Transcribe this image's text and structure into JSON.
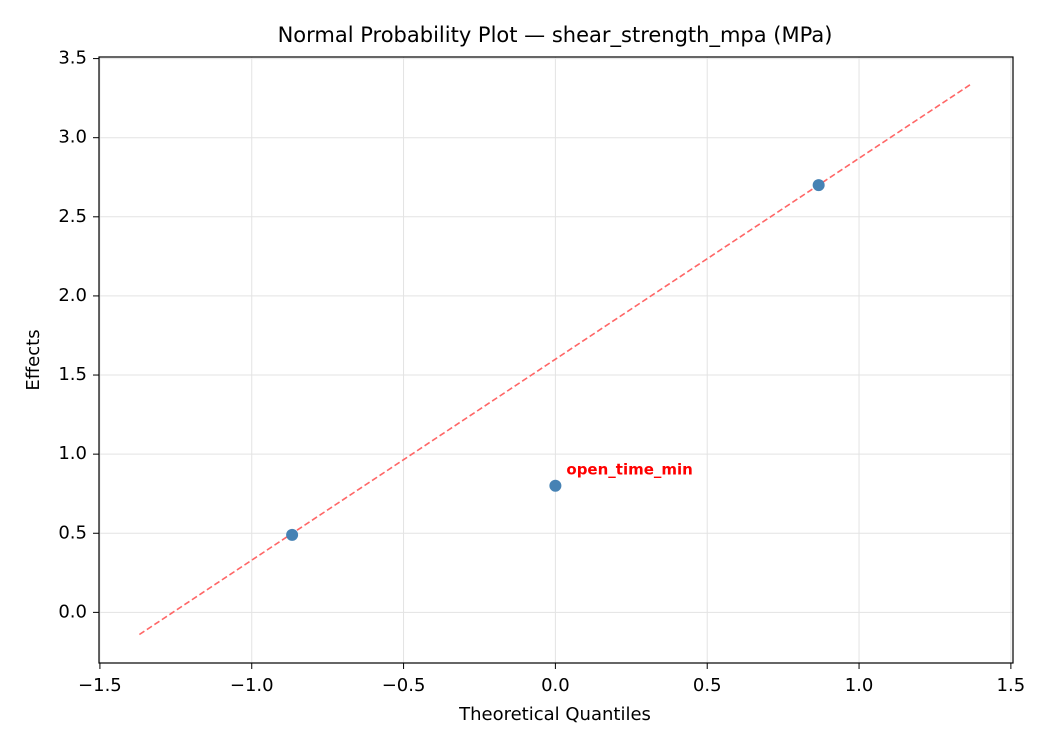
{
  "chart_data": {
    "type": "scatter",
    "title": "Normal Probability Plot — shear_strength_mpa (MPa)",
    "x_label": "Theoretical Quantiles",
    "y_label": "Effects",
    "xlim": [
      -1.503,
      1.507
    ],
    "ylim": [
      -0.32,
      3.51
    ],
    "xticks": [
      {
        "value": -1.5,
        "label": "−1.5"
      },
      {
        "value": -1,
        "label": "−1.0"
      },
      {
        "value": -0.5,
        "label": "−0.5"
      },
      {
        "value": 0,
        "label": "0.0"
      },
      {
        "value": 0.5,
        "label": "0.5"
      },
      {
        "value": 1,
        "label": "1.0"
      },
      {
        "value": 1.5,
        "label": "1.5"
      }
    ],
    "yticks": [
      {
        "value": 0,
        "label": "0.0"
      },
      0.5,
      {
        "value": 1,
        "label": "1.0"
      },
      1.5,
      {
        "value": 2,
        "label": "2.0"
      },
      2.5,
      {
        "value": 3,
        "label": "3.0"
      },
      3.5
    ],
    "grid": true,
    "points": {
      "color": "#4682b4",
      "x": [
        -0.867,
        0,
        0.867
      ],
      "values": [
        0.49,
        0.8,
        2.7
      ],
      "labels": [
        null,
        "open_time_min",
        null
      ],
      "label_color": "#ff0000"
    },
    "reference_line": {
      "color": "#ff6666",
      "x": [
        -1.37,
        1.37
      ],
      "values": [
        -0.14,
        3.34
      ]
    }
  }
}
